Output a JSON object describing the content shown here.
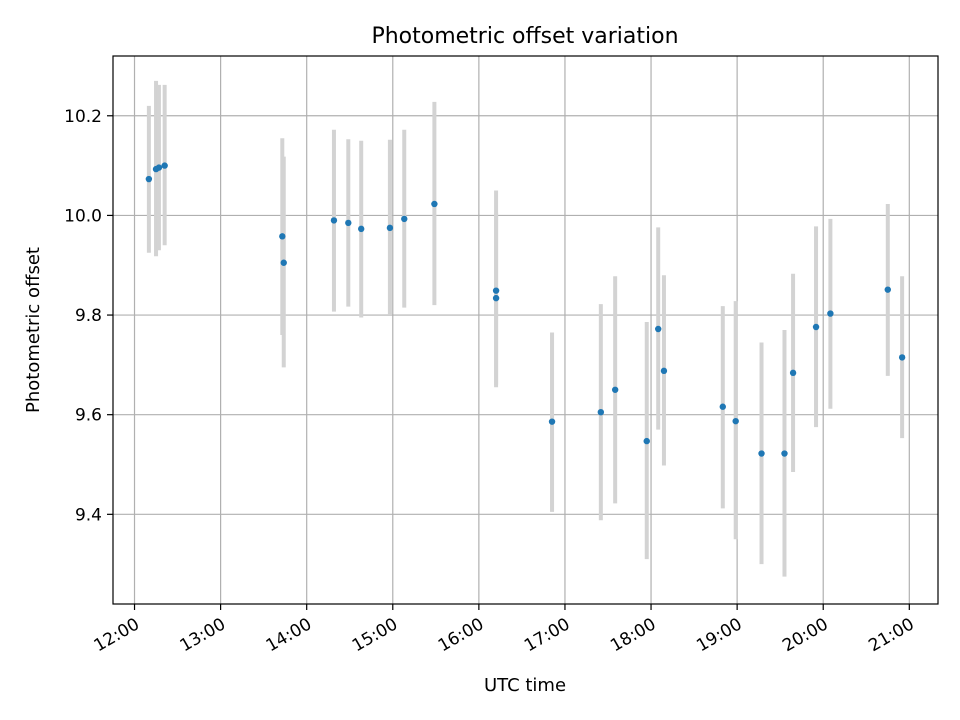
{
  "chart_data": {
    "type": "scatter",
    "title": "Photometric offset variation",
    "xlabel": "UTC time",
    "ylabel": "Photometric offset",
    "xlim": [
      "11:45",
      "21:20"
    ],
    "ylim": [
      9.22,
      10.32
    ],
    "x_ticks": [
      "12:00",
      "13:00",
      "14:00",
      "15:00",
      "16:00",
      "17:00",
      "18:00",
      "19:00",
      "20:00",
      "21:00"
    ],
    "y_ticks": [
      9.4,
      9.6,
      9.8,
      10.0,
      10.2
    ],
    "grid": true,
    "marker_color": "#1f77b4",
    "errorbar_color": "#d3d3d3",
    "series": [
      {
        "points": [
          {
            "x": "12:10",
            "y": 10.073,
            "ylow": 9.925,
            "yhigh": 10.22
          },
          {
            "x": "12:15",
            "y": 10.093,
            "ylow": 9.918,
            "yhigh": 10.27
          },
          {
            "x": "12:17",
            "y": 10.096,
            "ylow": 9.93,
            "yhigh": 10.262
          },
          {
            "x": "12:21",
            "y": 10.1,
            "ylow": 9.94,
            "yhigh": 10.262
          },
          {
            "x": "13:43",
            "y": 9.958,
            "ylow": 9.76,
            "yhigh": 10.155
          },
          {
            "x": "13:44",
            "y": 9.905,
            "ylow": 9.695,
            "yhigh": 10.118
          },
          {
            "x": "14:19",
            "y": 9.99,
            "ylow": 9.807,
            "yhigh": 10.172
          },
          {
            "x": "14:29",
            "y": 9.985,
            "ylow": 9.817,
            "yhigh": 10.153
          },
          {
            "x": "14:38",
            "y": 9.973,
            "ylow": 9.795,
            "yhigh": 10.15
          },
          {
            "x": "14:58",
            "y": 9.975,
            "ylow": 9.8,
            "yhigh": 10.152
          },
          {
            "x": "15:08",
            "y": 9.993,
            "ylow": 9.815,
            "yhigh": 10.172
          },
          {
            "x": "15:29",
            "y": 10.023,
            "ylow": 9.82,
            "yhigh": 10.228
          },
          {
            "x": "16:12",
            "y": 9.849,
            "ylow": 9.66,
            "yhigh": 10.05
          },
          {
            "x": "16:12",
            "y": 9.834,
            "ylow": 9.655,
            "yhigh": 10.005
          },
          {
            "x": "16:51",
            "y": 9.586,
            "ylow": 9.405,
            "yhigh": 9.765
          },
          {
            "x": "17:25",
            "y": 9.605,
            "ylow": 9.388,
            "yhigh": 9.822
          },
          {
            "x": "17:35",
            "y": 9.65,
            "ylow": 9.422,
            "yhigh": 9.878
          },
          {
            "x": "17:57",
            "y": 9.547,
            "ylow": 9.31,
            "yhigh": 9.786
          },
          {
            "x": "18:05",
            "y": 9.772,
            "ylow": 9.57,
            "yhigh": 9.976
          },
          {
            "x": "18:09",
            "y": 9.688,
            "ylow": 9.498,
            "yhigh": 9.88
          },
          {
            "x": "18:50",
            "y": 9.616,
            "ylow": 9.412,
            "yhigh": 9.818
          },
          {
            "x": "18:59",
            "y": 9.587,
            "ylow": 9.35,
            "yhigh": 9.828
          },
          {
            "x": "19:17",
            "y": 9.522,
            "ylow": 9.3,
            "yhigh": 9.745
          },
          {
            "x": "19:33",
            "y": 9.522,
            "ylow": 9.275,
            "yhigh": 9.77
          },
          {
            "x": "19:39",
            "y": 9.684,
            "ylow": 9.485,
            "yhigh": 9.883
          },
          {
            "x": "19:55",
            "y": 9.776,
            "ylow": 9.575,
            "yhigh": 9.978
          },
          {
            "x": "20:05",
            "y": 9.803,
            "ylow": 9.612,
            "yhigh": 9.993
          },
          {
            "x": "20:45",
            "y": 9.851,
            "ylow": 9.678,
            "yhigh": 10.023
          },
          {
            "x": "20:55",
            "y": 9.715,
            "ylow": 9.553,
            "yhigh": 9.878
          }
        ]
      }
    ]
  }
}
